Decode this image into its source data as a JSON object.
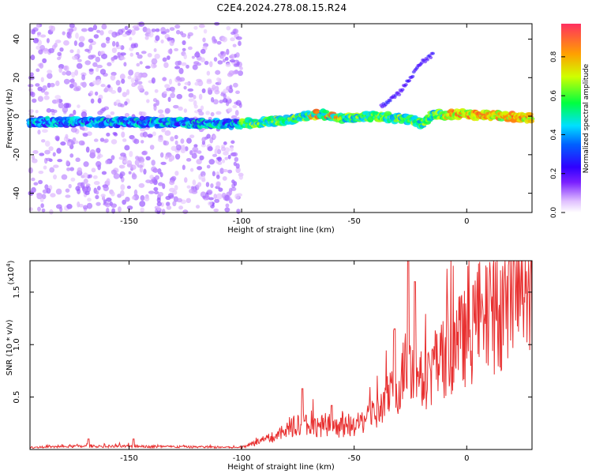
{
  "title": "C2E4.2024.278.08.15.R24",
  "chart_data": [
    {
      "type": "heatmap",
      "xlabel": "Height of straight line (km)",
      "ylabel": "Frequency (Hz)",
      "xlim": [
        -194,
        29
      ],
      "ylim": [
        -50,
        48
      ],
      "x_ticks": [
        -150,
        -100,
        -50,
        0
      ],
      "x_tick_labels": [
        "-150",
        "-100",
        "-50",
        "0"
      ],
      "y_ticks": [
        -40,
        -20,
        0,
        20,
        40
      ],
      "y_tick_labels": [
        "-40",
        "-20",
        "0",
        "20",
        "40"
      ],
      "colorbar": {
        "label": "Normalized spectral amplitude",
        "range": [
          0,
          0.97
        ],
        "ticks": [
          0.0,
          0.2,
          0.4,
          0.6,
          0.8
        ],
        "tick_labels": [
          "0.0",
          "0.2",
          "0.4",
          "0.6",
          "0.8"
        ],
        "colors": [
          "#ffffff",
          "#b070ff",
          "#4000ff",
          "#0040ff",
          "#00ffff",
          "#00ff40",
          "#ffff00",
          "#ff8000",
          "#ff0000"
        ]
      },
      "ridge": [
        {
          "x": -194,
          "y": -3
        },
        {
          "x": -150,
          "y": -3
        },
        {
          "x": -100,
          "y": -4
        },
        {
          "x": -80,
          "y": -2
        },
        {
          "x": -65,
          "y": 1
        },
        {
          "x": -55,
          "y": -1
        },
        {
          "x": -40,
          "y": 0
        },
        {
          "x": -25,
          "y": -2
        },
        {
          "x": -20,
          "y": -4
        },
        {
          "x": -15,
          "y": 1
        },
        {
          "x": 0,
          "y": 1
        },
        {
          "x": 29,
          "y": -1
        }
      ],
      "branch": [
        {
          "x": -38,
          "y": 5
        },
        {
          "x": -30,
          "y": 12
        },
        {
          "x": -25,
          "y": 20
        },
        {
          "x": -20,
          "y": 28
        },
        {
          "x": -15,
          "y": 32
        }
      ]
    },
    {
      "type": "line",
      "xlabel": "Height of straight line (km)",
      "ylabel": "SNR (10 * v/v)",
      "y_scale_note": "(x10",
      "y_scale_exp": "4",
      "xlim": [
        -194,
        29
      ],
      "ylim": [
        0,
        1.8
      ],
      "x_ticks": [
        -150,
        -100,
        -50,
        0
      ],
      "x_tick_labels": [
        "-150",
        "-100",
        "-50",
        "0"
      ],
      "y_ticks": [
        0.5,
        1.0,
        1.5
      ],
      "y_tick_labels": [
        "0.5",
        "1.0",
        "1.5"
      ],
      "line_color": "#e83030",
      "envelope": [
        {
          "x": -194,
          "y": 0.02
        },
        {
          "x": -170,
          "y": 0.03
        },
        {
          "x": -150,
          "y": 0.03
        },
        {
          "x": -100,
          "y": 0.02
        },
        {
          "x": -95,
          "y": 0.06
        },
        {
          "x": -85,
          "y": 0.12
        },
        {
          "x": -75,
          "y": 0.25
        },
        {
          "x": -60,
          "y": 0.2
        },
        {
          "x": -50,
          "y": 0.22
        },
        {
          "x": -40,
          "y": 0.35
        },
        {
          "x": -35,
          "y": 0.5
        },
        {
          "x": -30,
          "y": 0.6
        },
        {
          "x": -26,
          "y": 0.9
        },
        {
          "x": -20,
          "y": 0.65
        },
        {
          "x": -15,
          "y": 0.75
        },
        {
          "x": -5,
          "y": 1.0
        },
        {
          "x": 5,
          "y": 1.15
        },
        {
          "x": 15,
          "y": 1.35
        },
        {
          "x": 29,
          "y": 1.6
        }
      ],
      "peaks": [
        {
          "x": -168,
          "y": 0.1
        },
        {
          "x": -148,
          "y": 0.1
        },
        {
          "x": -73,
          "y": 0.58
        },
        {
          "x": -60,
          "y": 0.42
        },
        {
          "x": -32,
          "y": 1.15
        },
        {
          "x": -26,
          "y": 1.8
        },
        {
          "x": -23,
          "y": 1.6
        }
      ]
    }
  ]
}
